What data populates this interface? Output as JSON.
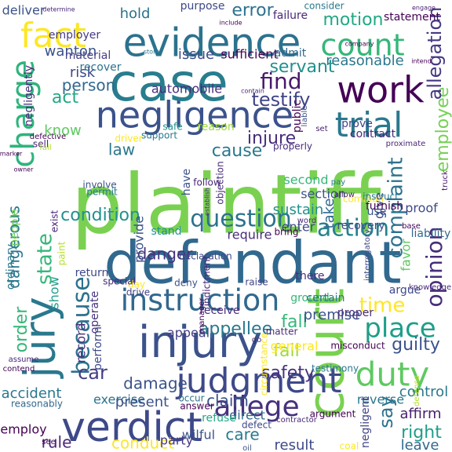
{
  "word_cloud": {
    "background": "#ffffff",
    "palette": [
      "#440154",
      "#482878",
      "#3e4989",
      "#31688e",
      "#26828e",
      "#1f9e89",
      "#35b779",
      "#6ece58",
      "#b5de2b",
      "#fde725"
    ],
    "words": [
      {
        "text": "plaintiff",
        "color": "#7ad151"
      },
      {
        "text": "defendant",
        "color": "#31688e"
      },
      {
        "text": "negligence",
        "color": "#3b528b"
      },
      {
        "text": "evidence",
        "color": "#2c728e"
      },
      {
        "text": "case",
        "color": "#287d8e"
      },
      {
        "text": "injury",
        "color": "#3b528b"
      },
      {
        "text": "verdict",
        "color": "#3e4989"
      },
      {
        "text": "court",
        "color": "#7ad151"
      },
      {
        "text": "jury",
        "color": "#2a788e"
      },
      {
        "text": "work",
        "color": "#440154"
      },
      {
        "text": "trial",
        "color": "#2a788e"
      },
      {
        "text": "count",
        "color": "#35b779"
      },
      {
        "text": "fact",
        "color": "#fde725"
      },
      {
        "text": "judgment",
        "color": "#3e4989"
      },
      {
        "text": "instruction",
        "color": "#31688e"
      },
      {
        "text": "duty",
        "color": "#5ec962"
      },
      {
        "text": "charge",
        "color": "#2fb47c"
      },
      {
        "text": "question",
        "color": "#2c728e"
      },
      {
        "text": "allege",
        "color": "#46327e"
      },
      {
        "text": "action",
        "color": "#26828e"
      },
      {
        "text": "because",
        "color": "#2c728e"
      },
      {
        "text": "place",
        "color": "#1f9e89"
      },
      {
        "text": "time",
        "color": "#fde725"
      },
      {
        "text": "state",
        "color": "#35b779"
      },
      {
        "text": "find",
        "color": "#481a6c"
      },
      {
        "text": "testify",
        "color": "#414487"
      },
      {
        "text": "injure",
        "color": "#472d7b"
      },
      {
        "text": "error",
        "color": "#2c728e"
      },
      {
        "text": "motion",
        "color": "#22a884"
      },
      {
        "text": "act",
        "color": "#22a884"
      },
      {
        "text": "person",
        "color": "#31688e"
      },
      {
        "text": "law",
        "color": "#2a788e"
      },
      {
        "text": "cause",
        "color": "#2a788e"
      },
      {
        "text": "danger",
        "color": "#46327e"
      },
      {
        "text": "condition",
        "color": "#21918c"
      },
      {
        "text": "complaint",
        "color": "#2c728e"
      },
      {
        "text": "employee",
        "color": "#75d054"
      },
      {
        "text": "opinion",
        "color": "#472d7b"
      },
      {
        "text": "fail",
        "color": "#9fda3a"
      },
      {
        "text": "fall",
        "color": "#35b779"
      },
      {
        "text": "appellee",
        "color": "#2a788e"
      },
      {
        "text": "car",
        "color": "#433e85"
      },
      {
        "text": "damage",
        "color": "#3b528b"
      },
      {
        "text": "say",
        "color": "#2c728e"
      },
      {
        "text": "safety",
        "color": "#46327e"
      },
      {
        "text": "guilty",
        "color": "#3b528b"
      },
      {
        "text": "care",
        "color": "#2a788e"
      },
      {
        "text": "claim",
        "color": "#3b528b"
      },
      {
        "text": "rule",
        "color": "#482878"
      },
      {
        "text": "conduct",
        "color": "#fde725"
      },
      {
        "text": "right",
        "color": "#1f9e89"
      },
      {
        "text": "control",
        "color": "#2a788e"
      },
      {
        "text": "result",
        "color": "#3e4989"
      },
      {
        "text": "leave",
        "color": "#31688e"
      },
      {
        "text": "order",
        "color": "#35b779"
      },
      {
        "text": "dangerous",
        "color": "#2a788e"
      },
      {
        "text": "know",
        "color": "#5ec962"
      },
      {
        "text": "require",
        "color": "#472d7b"
      },
      {
        "text": "reasonable",
        "color": "#2a788e"
      },
      {
        "text": "servant",
        "color": "#21918c"
      },
      {
        "text": "hold",
        "color": "#2c728e"
      },
      {
        "text": "wanton",
        "color": "#3b528b"
      },
      {
        "text": "issue",
        "color": "#3e4989"
      },
      {
        "text": "sufficient",
        "color": "#440154"
      },
      {
        "text": "risk",
        "color": "#3e4989"
      },
      {
        "text": "allegation",
        "color": "#443983"
      },
      {
        "text": "affirm",
        "color": "#481f70"
      },
      {
        "text": "premise",
        "color": "#3b528b"
      },
      {
        "text": "appeal",
        "color": "#433e85"
      },
      {
        "text": "record",
        "color": "#472d7b"
      },
      {
        "text": "provide",
        "color": "#3b528b"
      },
      {
        "text": "accident",
        "color": "#2a788e"
      },
      {
        "text": "exercise",
        "color": "#2c728e"
      },
      {
        "text": "employ",
        "color": "#440154"
      },
      {
        "text": "party",
        "color": "#443983"
      },
      {
        "text": "reverse",
        "color": "#2a788e"
      },
      {
        "text": "negligent",
        "color": "#414487"
      },
      {
        "text": "direct",
        "color": "#31688e"
      },
      {
        "text": "general",
        "color": "#fde725"
      },
      {
        "text": "section",
        "color": "#3b528b"
      },
      {
        "text": "second",
        "color": "#35b779"
      },
      {
        "text": "sustain",
        "color": "#21918c"
      },
      {
        "text": "enter",
        "color": "#3e4989"
      },
      {
        "text": "take",
        "color": "#31688e"
      },
      {
        "text": "proof",
        "color": "#3e4989"
      },
      {
        "text": "give",
        "color": "#3e4989"
      },
      {
        "text": "favor",
        "color": "#5ec962"
      },
      {
        "text": "show",
        "color": "#1f9e89"
      },
      {
        "text": "ordinary",
        "color": "#2a788e"
      },
      {
        "text": "present",
        "color": "#3b528b"
      },
      {
        "text": "refuse",
        "color": "#22a884"
      },
      {
        "text": "wilful",
        "color": "#3b528b"
      },
      {
        "text": "there",
        "color": "#472d7b"
      },
      {
        "text": "bring",
        "color": "#440154"
      },
      {
        "text": "declaration",
        "color": "#3e4989"
      },
      {
        "text": "ground",
        "color": "#35b779"
      },
      {
        "text": "certain",
        "color": "#2a788e"
      },
      {
        "text": "argue",
        "color": "#3e4989"
      },
      {
        "text": "deliver",
        "color": "#3b528b"
      },
      {
        "text": "purpose",
        "color": "#3e4989"
      },
      {
        "text": "consider",
        "color": "#2a788e"
      },
      {
        "text": "failure",
        "color": "#482878"
      },
      {
        "text": "statement",
        "color": "#440154"
      },
      {
        "text": "employer",
        "color": "#443983"
      },
      {
        "text": "material",
        "color": "#433e85"
      },
      {
        "text": "admit",
        "color": "#31688e"
      },
      {
        "text": "automobile",
        "color": "#472d7b"
      },
      {
        "text": "recover",
        "color": "#2c728e"
      },
      {
        "text": "reason",
        "color": "#9fda3a"
      },
      {
        "text": "safe",
        "color": "#21918c"
      },
      {
        "text": "prove",
        "color": "#414487"
      },
      {
        "text": "contract",
        "color": "#482878"
      },
      {
        "text": "furnish",
        "color": "#440154"
      },
      {
        "text": "use",
        "color": "#3b528b"
      },
      {
        "text": "recovery",
        "color": "#3e4989"
      },
      {
        "text": "common",
        "color": "#fde725"
      },
      {
        "text": "instruct",
        "color": "#2a788e"
      },
      {
        "text": "exist",
        "color": "#482878"
      },
      {
        "text": "permit",
        "color": "#2a788e"
      },
      {
        "text": "support",
        "color": "#2a788e"
      },
      {
        "text": "involve",
        "color": "#3b528b"
      },
      {
        "text": "follow",
        "color": "#482878"
      },
      {
        "text": "day",
        "color": "#fde725"
      },
      {
        "text": "drive",
        "color": "#414487"
      },
      {
        "text": "stand",
        "color": "#21918c"
      },
      {
        "text": "return",
        "color": "#3e4989"
      },
      {
        "text": "special",
        "color": "#472d7b"
      },
      {
        "text": "deny",
        "color": "#3b528b"
      },
      {
        "text": "raise",
        "color": "#414487"
      },
      {
        "text": "receive",
        "color": "#472d7b"
      },
      {
        "text": "matter",
        "color": "#472d7b"
      },
      {
        "text": "proper",
        "color": "#472d7b"
      },
      {
        "text": "misconduct",
        "color": "#440154"
      },
      {
        "text": "testimony",
        "color": "#2a788e"
      },
      {
        "text": "argument",
        "color": "#440154"
      },
      {
        "text": "circumstance",
        "color": "#fde725"
      },
      {
        "text": "answer",
        "color": "#440154"
      },
      {
        "text": "occur",
        "color": "#2c728e"
      },
      {
        "text": "defect",
        "color": "#3e4989"
      },
      {
        "text": "coal",
        "color": "#fde725"
      },
      {
        "text": "operate",
        "color": "#46327e"
      },
      {
        "text": "perform",
        "color": "#3e4989"
      },
      {
        "text": "reasonably",
        "color": "#31688e"
      },
      {
        "text": "liability",
        "color": "#31688e"
      },
      {
        "text": "base",
        "color": "#440154"
      },
      {
        "text": "driver",
        "color": "#fde725"
      },
      {
        "text": "properly",
        "color": "#472d7b"
      },
      {
        "text": "objection",
        "color": "#472d7b"
      },
      {
        "text": "indictment",
        "color": "#482878"
      },
      {
        "text": "proximate",
        "color": "#482878"
      },
      {
        "text": "defense",
        "color": "#b5de2b"
      },
      {
        "text": "knowledge",
        "color": "#482878"
      },
      {
        "text": "interrogatory",
        "color": "#3e4989"
      },
      {
        "text": "pay",
        "color": "#2a788e"
      },
      {
        "text": "allow",
        "color": "#481f70"
      },
      {
        "text": "word",
        "color": "#482878"
      },
      {
        "text": "see",
        "color": "#440154"
      },
      {
        "text": "have",
        "color": "#3b528b"
      },
      {
        "text": "go",
        "color": "#482878"
      },
      {
        "text": "oil",
        "color": "#3b528b"
      },
      {
        "text": "manager",
        "color": "#440154"
      },
      {
        "text": "contend",
        "color": "#440154"
      },
      {
        "text": "assume",
        "color": "#482878"
      },
      {
        "text": "people",
        "color": "#6ece58"
      },
      {
        "text": "paint",
        "color": "#b5de2b"
      },
      {
        "text": "truck",
        "color": "#481a6c"
      },
      {
        "text": "contractor",
        "color": "#482878"
      },
      {
        "text": "determine",
        "color": "#482878"
      },
      {
        "text": "store",
        "color": "#2a788e"
      },
      {
        "text": "company",
        "color": "#440154"
      },
      {
        "text": "include",
        "color": "#440154"
      },
      {
        "text": "engage",
        "color": "#481f70"
      },
      {
        "text": "intend",
        "color": "#440154"
      },
      {
        "text": "contain",
        "color": "#482878"
      },
      {
        "text": "marker",
        "color": "#440154"
      },
      {
        "text": "owner",
        "color": "#440154"
      },
      {
        "text": "negligently",
        "color": "#472d7b"
      },
      {
        "text": "establish",
        "color": "#482878"
      },
      {
        "text": "public",
        "color": "#440154"
      },
      {
        "text": "liable",
        "color": "#3b528b"
      },
      {
        "text": "defective",
        "color": "#440154"
      },
      {
        "text": "sell",
        "color": "#482878"
      },
      {
        "text": "set",
        "color": "#481f70"
      },
      {
        "text": "fail",
        "color": "#b5de2b"
      },
      {
        "text": "err",
        "color": "#2a788e"
      },
      {
        "text": "hire",
        "color": "#440154"
      },
      {
        "text": "alleged",
        "color": "#440154"
      }
    ]
  }
}
